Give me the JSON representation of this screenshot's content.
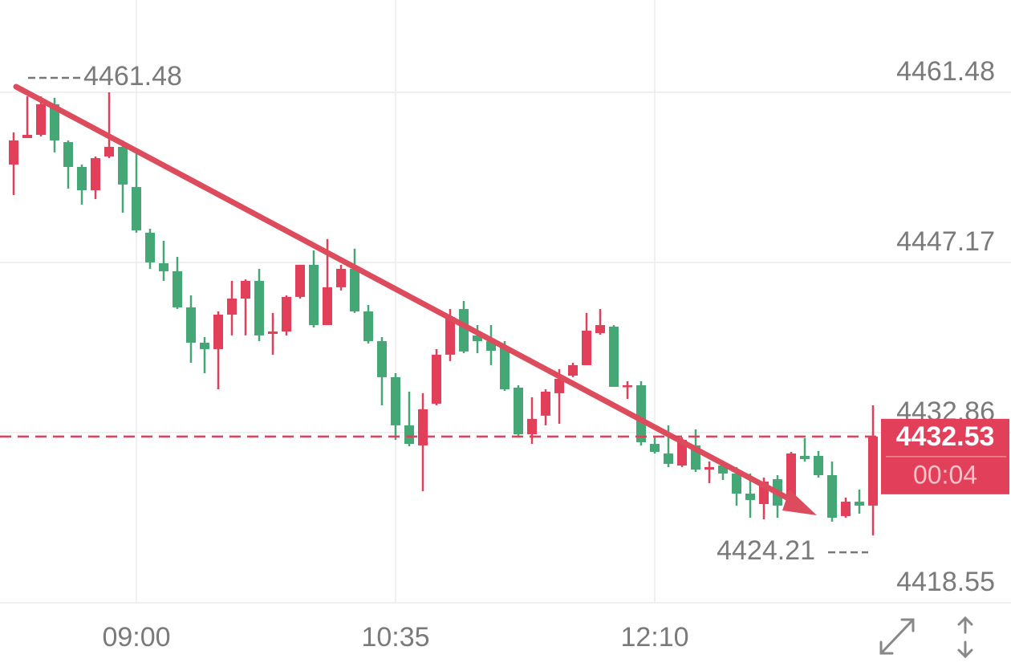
{
  "chart_data": {
    "type": "candlestick",
    "x": [
      "08:15",
      "08:20",
      "08:25",
      "08:30",
      "08:35",
      "08:40",
      "08:45",
      "08:50",
      "08:55",
      "09:00",
      "09:05",
      "09:10",
      "09:15",
      "09:20",
      "09:25",
      "09:30",
      "09:35",
      "09:40",
      "09:45",
      "09:50",
      "09:55",
      "10:00",
      "10:05",
      "10:10",
      "10:15",
      "10:20",
      "10:25",
      "10:30",
      "10:35",
      "10:40",
      "10:45",
      "10:50",
      "10:55",
      "11:00",
      "11:05",
      "11:10",
      "11:15",
      "11:20",
      "11:25",
      "11:30",
      "11:35",
      "11:40",
      "11:45",
      "11:50",
      "11:55",
      "12:00",
      "12:05",
      "12:10",
      "12:15",
      "12:20",
      "12:25",
      "12:30",
      "12:35",
      "12:40",
      "12:45",
      "12:50",
      "12:55",
      "13:00",
      "13:05",
      "13:10",
      "13:15",
      "13:20",
      "13:25",
      "13:30"
    ],
    "open": [
      4455.4,
      4457.63,
      4457.9,
      4460.47,
      4457.29,
      4455.2,
      4453.24,
      4456.08,
      4456.89,
      4453.51,
      4449.67,
      4447.1,
      4446.43,
      4443.39,
      4440.42,
      4439.88,
      4442.78,
      4444.13,
      4445.62,
      4441.16,
      4441.36,
      4444.27,
      4446.97,
      4441.9,
      4445.08,
      4446.63,
      4443.05,
      4440.55,
      4437.52,
      4433.47,
      4431.78,
      4435.29,
      4439.41,
      4443.25,
      4441.03,
      4440.55,
      4440.08,
      4436.64,
      4432.72,
      4434.28,
      4436.17,
      4437.65,
      4438.53,
      4441.23,
      4441.77,
      4436.71,
      4436.84,
      4431.91,
      4431.1,
      4430.09,
      4431.78,
      4429.75,
      4430.09,
      4429.42,
      4427.73,
      4426.85,
      4428.94,
      4426.72,
      4430.9,
      4430.9,
      4429.28,
      4425.84,
      4427.05,
      4426.72
    ],
    "high": [
      4458.1,
      4461.14,
      4461.14,
      4461.01,
      4457.43,
      4455.4,
      4456.08,
      4461.48,
      4457.43,
      4456.75,
      4450.0,
      4448.99,
      4447.64,
      4444.4,
      4440.89,
      4443.05,
      4445.62,
      4445.75,
      4446.63,
      4442.92,
      4444.4,
      4446.97,
      4448.18,
      4449.13,
      4446.97,
      4448.32,
      4443.59,
      4440.89,
      4437.85,
      4436.3,
      4436.17,
      4439.88,
      4443.25,
      4443.93,
      4441.9,
      4441.9,
      4440.55,
      4436.84,
      4435.83,
      4436.5,
      4438.19,
      4438.73,
      4442.92,
      4443.25,
      4441.9,
      4437.18,
      4437.18,
      4432.45,
      4433.47,
      4432.45,
      4433.13,
      4430.43,
      4430.43,
      4429.96,
      4429.42,
      4429.08,
      4429.28,
      4431.24,
      4432.39,
      4431.31,
      4430.43,
      4427.39,
      4428.07,
      4435.15
    ],
    "low": [
      4452.84,
      4457.63,
      4457.77,
      4456.42,
      4453.38,
      4452.03,
      4452.5,
      4455.94,
      4451.35,
      4449.67,
      4446.63,
      4445.62,
      4443.25,
      4438.73,
      4437.85,
      4436.5,
      4441.03,
      4441.03,
      4440.55,
      4439.41,
      4441.03,
      4444.13,
      4441.7,
      4441.9,
      4444.81,
      4442.92,
      4440.35,
      4435.15,
      4432.25,
      4431.71,
      4427.93,
      4435.15,
      4438.87,
      4439.54,
      4439.54,
      4438.53,
      4436.37,
      4432.45,
      4431.91,
      4433.47,
      4433.6,
      4437.52,
      4438.53,
      4441.09,
      4436.71,
      4435.69,
      4431.78,
      4431.1,
      4429.96,
      4429.96,
      4429.55,
      4428.61,
      4428.88,
      4426.72,
      4425.7,
      4425.57,
      4425.7,
      4426.51,
      4430.43,
      4429.08,
      4425.37,
      4425.7,
      4426.04,
      4424.21
    ],
    "close": [
      4457.43,
      4457.9,
      4460.47,
      4457.43,
      4455.2,
      4453.24,
      4455.94,
      4456.89,
      4453.72,
      4449.87,
      4447.17,
      4446.43,
      4443.39,
      4440.42,
      4439.88,
      4442.78,
      4444.13,
      4445.62,
      4441.03,
      4441.36,
      4444.27,
      4446.97,
      4441.9,
      4445.08,
      4446.63,
      4443.05,
      4440.55,
      4437.52,
      4433.47,
      4431.91,
      4434.82,
      4439.41,
      4442.58,
      4439.68,
      4440.55,
      4439.74,
      4436.5,
      4432.72,
      4434.01,
      4436.3,
      4437.38,
      4438.53,
      4441.43,
      4441.9,
      4436.71,
      4436.84,
      4432.05,
      4431.24,
      4430.23,
      4432.25,
      4429.75,
      4429.96,
      4429.42,
      4427.73,
      4427.19,
      4428.74,
      4426.72,
      4431.1,
      4430.63,
      4429.28,
      4425.7,
      4427.05,
      4426.72,
      4432.53
    ],
    "up_color": "#e2405a",
    "down_color": "#45a676",
    "ylim": [
      4418.48,
      4469.24
    ],
    "yticks": [
      4418.55,
      4432.86,
      4447.17,
      4461.48
    ],
    "xticks": [
      "09:00",
      "10:35",
      "12:10"
    ],
    "grid": true,
    "countdown": "00:04"
  }
}
